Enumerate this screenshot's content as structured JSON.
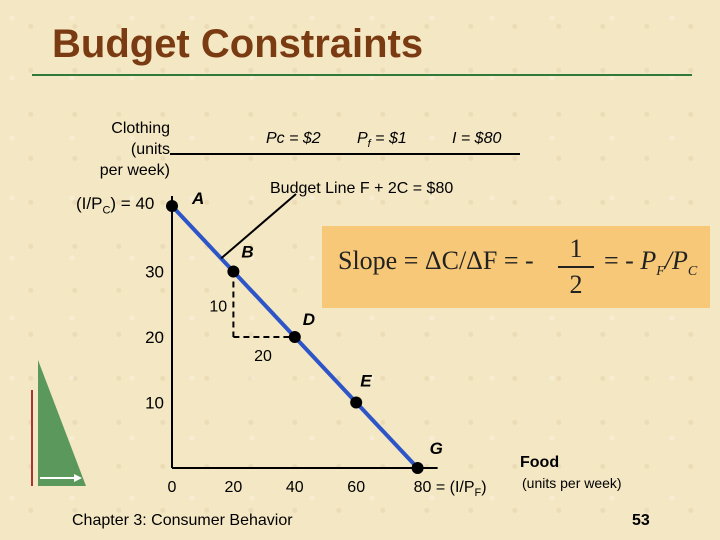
{
  "title": "Budget Constraints",
  "footer": "Chapter 3: Consumer Behavior",
  "page_number": "53",
  "accent_color": "#7a3b12",
  "line_color": "#2d55c8",
  "slope_box_color": "#f6c878",
  "params": {
    "pc": "Pc = $2",
    "pf": "Pf = $1",
    "income": "I = $80"
  },
  "budget_line_label": "Budget Line  F + 2C = $80",
  "slope": {
    "lhs": "Slope = ΔC/ΔF = -",
    "num": "1",
    "den": "2",
    "rhs": "= - PF/PC"
  },
  "axes": {
    "y_title": "Clothing\n(units\nper week)",
    "y_intercept": "(I/PC) = 40",
    "x_title": "Food",
    "x_units": "(units per week)",
    "x_intercept": "80 = (I/PF)"
  },
  "step_labels": {
    "dx": "20",
    "dy": "10"
  },
  "chart_data": {
    "type": "line",
    "title": "Budget Constraints",
    "xlabel": "Food (units per week)",
    "ylabel": "Clothing (units per week)",
    "xlim": [
      0,
      80
    ],
    "ylim": [
      0,
      40
    ],
    "x_ticks": [
      "0",
      "20",
      "40",
      "60",
      "80 = (I/PF)"
    ],
    "y_ticks": [
      "10",
      "20",
      "30",
      "(I/PC) = 40"
    ],
    "series": [
      {
        "name": "Budget Line  F + 2C = $80",
        "points": [
          {
            "label": "A",
            "x": 0,
            "y": 40
          },
          {
            "label": "B",
            "x": 20,
            "y": 30
          },
          {
            "label": "D",
            "x": 40,
            "y": 20
          },
          {
            "label": "E",
            "x": 60,
            "y": 10
          },
          {
            "label": "G",
            "x": 80,
            "y": 0
          }
        ]
      }
    ]
  }
}
